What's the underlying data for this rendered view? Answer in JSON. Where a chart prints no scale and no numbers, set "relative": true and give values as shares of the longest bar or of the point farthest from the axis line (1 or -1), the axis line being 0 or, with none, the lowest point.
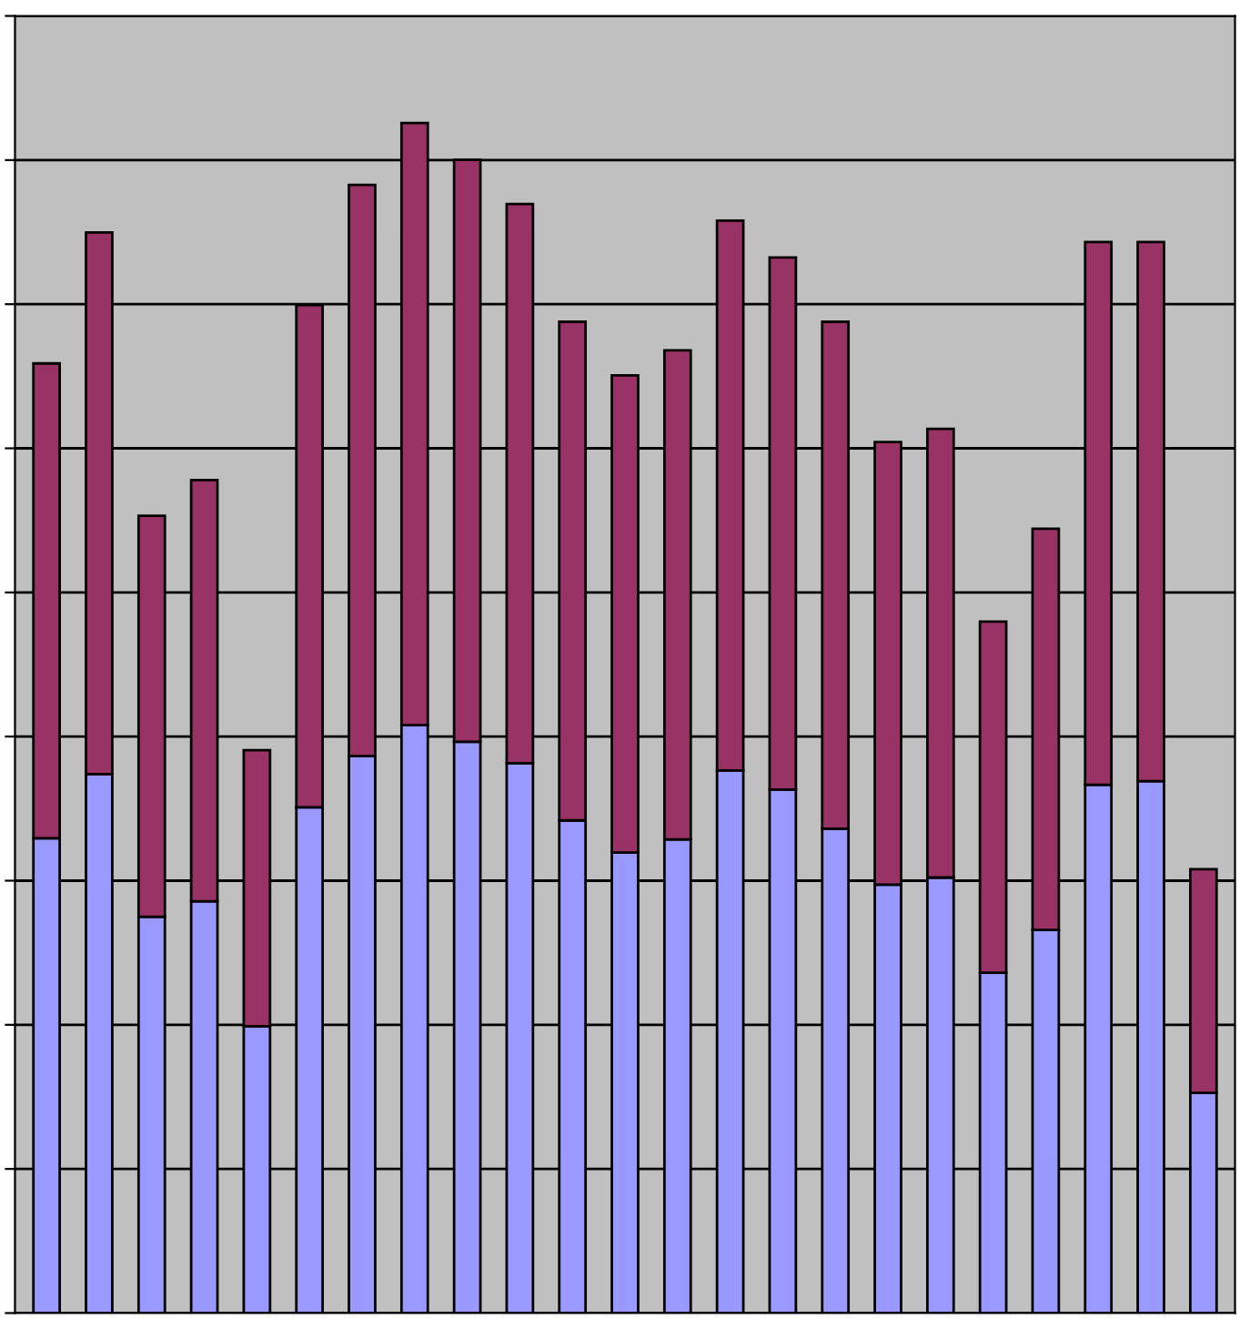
{
  "chart_data": {
    "type": "bar",
    "stacked": true,
    "relative": true,
    "grid": "y",
    "legend": false,
    "categories": [
      null,
      null,
      null,
      null,
      null,
      null,
      null,
      null,
      null,
      null,
      null,
      null,
      null,
      null,
      null,
      null,
      null,
      null,
      null,
      null,
      null,
      null,
      null
    ],
    "series": [
      {
        "color": "#9999ff",
        "values": [
          0.399,
          0.453,
          0.333,
          0.346,
          0.241,
          0.425,
          0.468,
          0.494,
          0.48,
          0.462,
          0.414,
          0.387,
          0.398,
          0.456,
          0.44,
          0.407,
          0.36,
          0.366,
          0.286,
          0.322,
          0.444,
          0.447,
          0.185
        ]
      },
      {
        "color": "#993366",
        "values": [
          0.399,
          0.455,
          0.337,
          0.354,
          0.232,
          0.422,
          0.48,
          0.506,
          0.489,
          0.47,
          0.419,
          0.401,
          0.411,
          0.462,
          0.447,
          0.426,
          0.372,
          0.377,
          0.295,
          0.337,
          0.456,
          0.453,
          0.188
        ]
      }
    ]
  }
}
